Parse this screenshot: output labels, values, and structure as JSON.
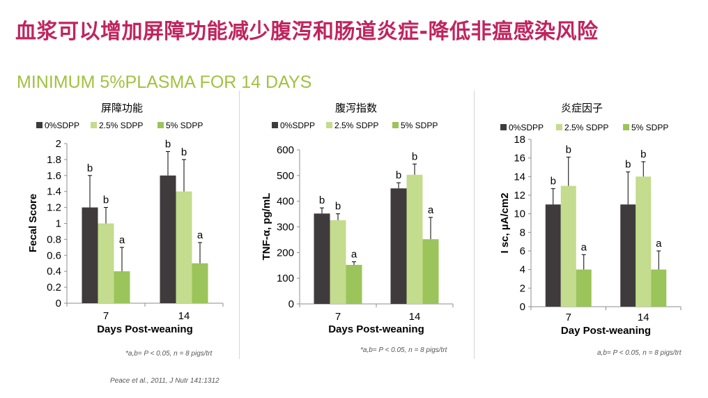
{
  "title": "血浆可以增加屏障功能减少腹泻和肠道炎症-降低非瘟感染风险",
  "subtitle": "MINIMUM 5%PLASMA FOR 14 DAYS",
  "colors": {
    "s0": "#3f3b3c",
    "s1": "#c3dc8d",
    "s2": "#9bc45a",
    "title": "#c0245e",
    "subtitle": "#9fc23f"
  },
  "notes": {
    "n1": "*a,b= P < 0.05, n = 8 pigs/trt",
    "n2": "*a,b= P < 0.05, n = 8 pigs/trt",
    "n3": "a,b= P < 0.05, n = 8 pigs/trt",
    "citation": "Peace et al., 2011, J Nutr 141:1312"
  },
  "chart_data": [
    {
      "type": "bar",
      "title": "屏障功能",
      "ylabel": "Fecal Score",
      "xlabel": "Days Post-weaning",
      "categories": [
        "7",
        "14"
      ],
      "ylim": [
        0,
        2
      ],
      "yticks": [
        "0",
        "0.2",
        "0.4",
        "0.6",
        "0.8",
        "1",
        "1.2",
        "1.4",
        "1.6",
        "1.8",
        "2"
      ],
      "legend_position": "top",
      "series": [
        {
          "name": "0%SDPP",
          "values": [
            1.2,
            1.6
          ],
          "errors": [
            0.4,
            0.3
          ],
          "labels": [
            "b",
            "b"
          ]
        },
        {
          "name": "2.5% SDPP",
          "values": [
            1.0,
            1.4
          ],
          "errors": [
            0.2,
            0.4
          ],
          "labels": [
            "b",
            "b"
          ]
        },
        {
          "name": "5% SDPP",
          "values": [
            0.4,
            0.5
          ],
          "errors": [
            0.3,
            0.26
          ],
          "labels": [
            "a",
            "a"
          ]
        }
      ]
    },
    {
      "type": "bar",
      "title": "腹泻指数",
      "ylabel": "TNF-α, pg/mL",
      "xlabel": "Days Post-weaning",
      "categories": [
        "7",
        "14"
      ],
      "ylim": [
        0,
        600
      ],
      "yticks": [
        "0",
        "100",
        "200",
        "300",
        "400",
        "500",
        "600"
      ],
      "legend_position": "top",
      "series": [
        {
          "name": "0%SDPP",
          "values": [
            352,
            450
          ],
          "errors": [
            22,
            22
          ],
          "labels": [
            "b",
            "b"
          ]
        },
        {
          "name": "2.5% SDPP",
          "values": [
            326,
            503
          ],
          "errors": [
            25,
            42
          ],
          "labels": [
            "b",
            "b"
          ]
        },
        {
          "name": "5% SDPP",
          "values": [
            152,
            252
          ],
          "errors": [
            12,
            85
          ],
          "labels": [
            "a",
            "a"
          ]
        }
      ]
    },
    {
      "type": "bar",
      "title": "炎症因子",
      "ylabel": "I sc, µA/cm2",
      "xlabel": "Day Post-weaning",
      "categories": [
        "7",
        "14"
      ],
      "ylim": [
        0,
        18
      ],
      "yticks": [
        "0",
        "2",
        "4",
        "6",
        "8",
        "10",
        "12",
        "14",
        "16",
        "18"
      ],
      "legend_position": "top",
      "series": [
        {
          "name": "0%SDPP",
          "values": [
            11,
            11
          ],
          "errors": [
            1.7,
            3.5
          ],
          "labels": [
            "b",
            "b"
          ]
        },
        {
          "name": "2.5% SDPP",
          "values": [
            13,
            14
          ],
          "errors": [
            3.1,
            1.6
          ],
          "labels": [
            "b",
            "b"
          ]
        },
        {
          "name": "5% SDPP",
          "values": [
            4,
            4
          ],
          "errors": [
            1.6,
            2.0
          ],
          "labels": [
            "a",
            "a"
          ]
        }
      ]
    }
  ]
}
